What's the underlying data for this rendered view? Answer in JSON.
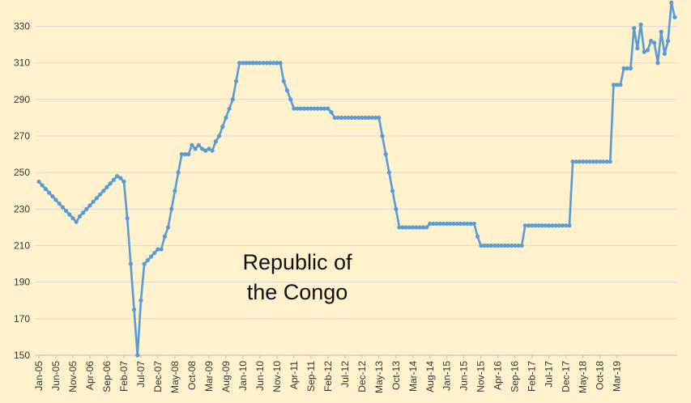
{
  "chart_data": {
    "type": "line",
    "title_lines": [
      "Republic of",
      "the Congo"
    ],
    "xlabel": "",
    "ylabel": "",
    "ylim": [
      150,
      340
    ],
    "y_ticks": [
      150,
      170,
      190,
      210,
      230,
      250,
      270,
      290,
      310,
      330
    ],
    "x_tick_labels": [
      "Jan-05",
      "Jun-05",
      "Nov-05",
      "Apr-06",
      "Sep-06",
      "Feb-07",
      "Jul-07",
      "Dec-07",
      "May-08",
      "Oct-08",
      "Mar-09",
      "Aug-09",
      "Jan-10",
      "Jun-10",
      "Nov-10",
      "Apr-11",
      "Sep-11",
      "Feb-12",
      "Jul-12",
      "Dec-12",
      "May-13",
      "Oct-13",
      "Mar-14",
      "Aug-14",
      "Jan-15",
      "Jun-15",
      "Nov-15",
      "Apr-16",
      "Sep-16",
      "Feb-17",
      "Jul-17",
      "Dec-17",
      "May-18",
      "Oct-18",
      "Mar-19"
    ],
    "grid": "horizontal",
    "legend": "none",
    "series": [
      {
        "color": "#5B9BD5",
        "start": "Jan-05",
        "values": [
          245,
          243,
          241,
          239,
          237,
          235,
          233,
          231,
          229,
          227,
          225,
          223,
          226,
          228,
          230,
          232,
          234,
          236,
          238,
          240,
          242,
          244,
          246,
          248,
          247,
          245,
          225,
          200,
          175,
          150,
          180,
          200,
          202,
          204,
          206,
          208,
          208,
          215,
          220,
          230,
          240,
          250,
          260,
          260,
          260,
          265,
          263,
          265,
          263,
          262,
          263,
          262,
          267,
          270,
          275,
          280,
          285,
          290,
          300,
          310,
          310,
          310,
          310,
          310,
          310,
          310,
          310,
          310,
          310,
          310,
          310,
          310,
          300,
          295,
          290,
          285,
          285,
          285,
          285,
          285,
          285,
          285,
          285,
          285,
          285,
          285,
          283,
          280,
          280,
          280,
          280,
          280,
          280,
          280,
          280,
          280,
          280,
          280,
          280,
          280,
          280,
          270,
          260,
          250,
          240,
          230,
          220,
          220,
          220,
          220,
          220,
          220,
          220,
          220,
          220,
          222,
          222,
          222,
          222,
          222,
          222,
          222,
          222,
          222,
          222,
          222,
          222,
          222,
          222,
          215,
          210,
          210,
          210,
          210,
          210,
          210,
          210,
          210,
          210,
          210,
          210,
          210,
          210,
          221,
          221,
          221,
          221,
          221,
          221,
          221,
          221,
          221,
          221,
          221,
          221,
          221,
          221,
          256,
          256,
          256,
          256,
          256,
          256,
          256,
          256,
          256,
          256,
          256,
          256,
          298,
          298,
          298,
          307,
          307,
          307,
          329,
          318,
          331,
          316,
          317,
          322,
          321,
          310,
          327,
          315,
          322,
          343,
          335
        ]
      }
    ]
  }
}
